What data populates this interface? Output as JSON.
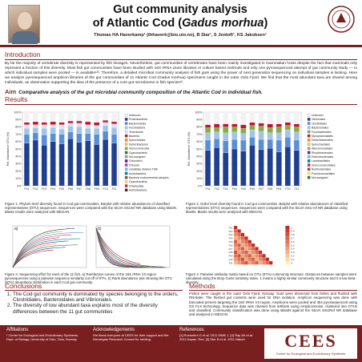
{
  "header": {
    "title_line1": "Gut community analysis",
    "title_line2_pre": "of Atlantic Cod (",
    "title_line2_italic": "Gadus morhua",
    "title_line2_post": ")",
    "authors": "Thomas HA Haverkamp¹ (thhaverk@bio.uio.no), B Star¹, S Jentoft¹, KS Jakobsen¹"
  },
  "intro": {
    "heading": "Introduction",
    "text": "By far the majority of vertebrate diversity is represented by fish lineages. Nevertheless, gut communities of vertebrates have been mainly investigated in mammalian hosts despite the fact that mammals only represent a fraction of this diversity. Most fish gut communities have been studied with 16S rRNA clone libraries or culture based methods and only one pyrosequenced attempt of gut community study — in which individual samples were pooled — is available¹²³. Therefore, a detailed microbial community analysis of fish guts using the power of next generation sequencing on individual samples is lacking. Here we analyze pyrosequenced amplicon libraries of the gut communities of 11 Atlantic Cod (Gadus morhua) specimens caught in the outer Oslo Fjord. We find that the most abundant taxa are shared among individuals, an observation supporting the idea of the presence of a core gut microbiome in fish species¹²."
  },
  "aim": {
    "label": "Aim",
    "text": "Comparative analysis of the gut microbial community composition of the Atlantic Cod in individual fish."
  },
  "results": {
    "heading": "Results"
  },
  "fig1": {
    "caption": "Figure 1. Phylum level diversity found in Cod gut communities. Barplot with relative abundances of classified representatives (OTU) sequences. Sequences were compared with the SILVA SSUref NR database using blastN. Blasts results were analyzed with MEGAN.",
    "legend": [
      "Unknown",
      "Proteobacteria",
      "Bacteroidetes",
      "Fusobacteria",
      "Tenericutes",
      "Bacteria",
      "Spirochaetes",
      "Deferribacteres",
      "Verrucomicrobia",
      "Cyanobacteria",
      "Not assigned",
      "Chloroflexi",
      "Chlorobi",
      "candidate division TM6",
      "Acidobacteria",
      "Bacteria environmental samples",
      "Cyanobacteria",
      "Chlamydiae",
      "Actinobacteria"
    ],
    "colors": [
      "#f2f2f2",
      "#1f3f8f",
      "#5b8fd4",
      "#a3c4e8",
      "#d6e3f3",
      "#c8102e",
      "#f28e2b",
      "#f7c55f",
      "#7fb041",
      "#2e7d32",
      "#9e9e9e",
      "#6a1b9a",
      "#ab47bc",
      "#4dd0e1",
      "#00838f",
      "#795548",
      "#ffeb3b",
      "#e91e63",
      "#3e2723"
    ]
  },
  "fig2": {
    "caption": "Figure 2. Order level diversity found in Cod gut communities. Barplot with relative abundances of classified representatives (OTU) sequences. Sequences were compared with the SILVA SSU ref NR database using blastN. Blasts results were analyzed with MEGAN.",
    "legend": [
      "Unknown",
      "Vibrionales",
      "Clostridiales",
      "Bacteroidales",
      "Fusobacteriales",
      "Mycoplasmatales",
      "Deferribacterales",
      "Spirochaetales",
      "Alteromonadales",
      "Rhodobacterales",
      "Enterobacteriales",
      "Lactobacillales",
      "Verrucomicrobiales",
      "Burkholderiales",
      "Pseudomonadales",
      "Not assigned"
    ],
    "colors": [
      "#f2f2f2",
      "#1f3f8f",
      "#5b8fd4",
      "#a3c4e8",
      "#7fb041",
      "#c8102e",
      "#f28e2b",
      "#f7c55f",
      "#9e9e9e",
      "#6a1b9a",
      "#4dd0e1",
      "#00838f",
      "#e91e63",
      "#795548",
      "#ffeb3b",
      "#2e7d32"
    ]
  },
  "fig3": {
    "caption": "Figure 3. Sequencing effort for each of the 11 fish. a) Rarefaction curves of the 16S rRNA V3 region pyrosequences using a pairwise sequence similarity cut-off of 97%. b) Rank abundance plot showing the OTU (97%) abundance distribution in each Cod gut community."
  },
  "fig4": {
    "caption": "Figure 4. Pairwise similarity matrix based on OTU (97%) community structure. Distances between samples were calculated using the Bray-Curtis similarity index. 1 means a highly similar community structure and 0 a low beta-diversity."
  },
  "chart_data": [
    {
      "type": "bar",
      "title": "",
      "ylabel": "Rel. Abundance OTU (%)",
      "ylim": [
        0,
        100
      ],
      "categories": [
        "Fh1",
        "Fh2",
        "Fh3",
        "Fh4",
        "Fh5",
        "Fh6",
        "Fh7",
        "Fh8",
        "Fh9",
        "F10",
        "F11"
      ],
      "yticks": [
        "0%",
        "10%",
        "20%",
        "30%",
        "40%",
        "50%",
        "60%",
        "70%",
        "80%",
        "90%",
        "100%"
      ],
      "series": [
        {
          "name": "Proteobacteria",
          "values": [
            58,
            62,
            55,
            60,
            57,
            64,
            59,
            61,
            56,
            63,
            58
          ]
        },
        {
          "name": "Bacteroidetes",
          "values": [
            12,
            10,
            14,
            11,
            13,
            9,
            12,
            10,
            14,
            11,
            12
          ]
        },
        {
          "name": "Fusobacteria",
          "values": [
            8,
            7,
            9,
            8,
            7,
            8,
            9,
            7,
            8,
            8,
            9
          ]
        },
        {
          "name": "Tenericutes",
          "values": [
            5,
            4,
            5,
            4,
            6,
            4,
            5,
            5,
            4,
            4,
            5
          ]
        },
        {
          "name": "Bacteria",
          "values": [
            3,
            4,
            3,
            4,
            3,
            3,
            3,
            4,
            4,
            3,
            3
          ]
        },
        {
          "name": "Unknown",
          "values": [
            14,
            13,
            14,
            13,
            14,
            12,
            12,
            13,
            14,
            11,
            13
          ]
        }
      ]
    },
    {
      "type": "bar",
      "title": "",
      "ylabel": "Rel. Abundance OTU (%)",
      "ylim": [
        0,
        100
      ],
      "categories": [
        "Fh1",
        "Fh2",
        "Fh3",
        "Fh4",
        "Fh5",
        "Fh6",
        "Fh7",
        "Fh8",
        "Fh9",
        "F10",
        "F11"
      ],
      "yticks": [
        "0%",
        "10%",
        "20%",
        "30%",
        "40%",
        "50%",
        "60%",
        "70%",
        "80%",
        "90%",
        "100%"
      ],
      "series": [
        {
          "name": "Vibrionales",
          "values": [
            48,
            52,
            45,
            50,
            47,
            55,
            49,
            51,
            46,
            53,
            48
          ]
        },
        {
          "name": "Clostridiales",
          "values": [
            14,
            12,
            16,
            13,
            15,
            11,
            14,
            12,
            16,
            13,
            14
          ]
        },
        {
          "name": "Bacteroidales",
          "values": [
            10,
            9,
            11,
            10,
            9,
            10,
            11,
            9,
            10,
            10,
            11
          ]
        },
        {
          "name": "Fusobacteriales",
          "values": [
            7,
            6,
            8,
            7,
            7,
            6,
            7,
            7,
            8,
            6,
            7
          ]
        },
        {
          "name": "Mycoplasmatales",
          "values": [
            4,
            5,
            4,
            4,
            5,
            4,
            4,
            5,
            4,
            4,
            4
          ]
        },
        {
          "name": "Unknown",
          "values": [
            17,
            16,
            16,
            16,
            17,
            14,
            15,
            16,
            16,
            14,
            16
          ]
        }
      ]
    },
    {
      "type": "line",
      "panel": "a",
      "title": "",
      "lines": 11
    },
    {
      "type": "line",
      "panel": "b",
      "title": "",
      "lines": 11
    },
    {
      "type": "heatmap",
      "title": "",
      "labels": [
        "Fh1",
        "Fh2",
        "Fh3",
        "Fh4",
        "Fh5",
        "Fh6",
        "Fh7",
        "Fh8",
        "Fh9",
        "F10",
        "F11"
      ],
      "scale": [
        "1",
        "0.9",
        "0.8",
        "0.7",
        "0.6",
        "0.5",
        "0.4",
        "0.3",
        "0.2",
        "0.1",
        "0"
      ]
    }
  ],
  "conclusions": {
    "heading": "Conclusions",
    "items": [
      "The Cod gut community is dominated by species belonging to the orders, Clostridiales, Bacteroidales and Vibrionales.",
      "The diversity of low abundant taxa explains most of the diversity differences between the 11 gut communities"
    ]
  },
  "methods": {
    "heading": "Methods",
    "text": "Fishes were caught in the outer Oslo Fjord, Norway. Guts were dissected from fishes and flushed with RNAlater. The flushed gut contents were used for DNA isolation. Amplicon sequencing was done with barcoded primers targeting the 16S rRNA V3 region. Amplicons were pooled and 454 pyrosequenced using GS FLX technology. Sequence data was cleaned from artifacts using Ampliconnoise, clustered into OTUs and classified. Community classification was done using BlastN against the SILVA SSURef NR database and analyzed in MEGAN."
  },
  "footer": {
    "affiliations_h": "Affiliations",
    "affiliations": "¹ Centre for Ecological and Evolutionary Synthesis, Dept. of Biology, University of Oslo, Oslo, Norway",
    "ack_h": "Acknowledgements",
    "ack": "We thank everyone at CEES for their support and the Norwegian Research Council for funding.",
    "refs_h": "References",
    "refs": "[1] Roeselers G et al. 2011 ISME J. [2] Ray AK et al. 2012 Aquac. Res. [3] Star B et al. 2011 Nature",
    "cees": "CEES",
    "cees_sub": "Centre for Ecological and Evolutionary Synthesis"
  }
}
